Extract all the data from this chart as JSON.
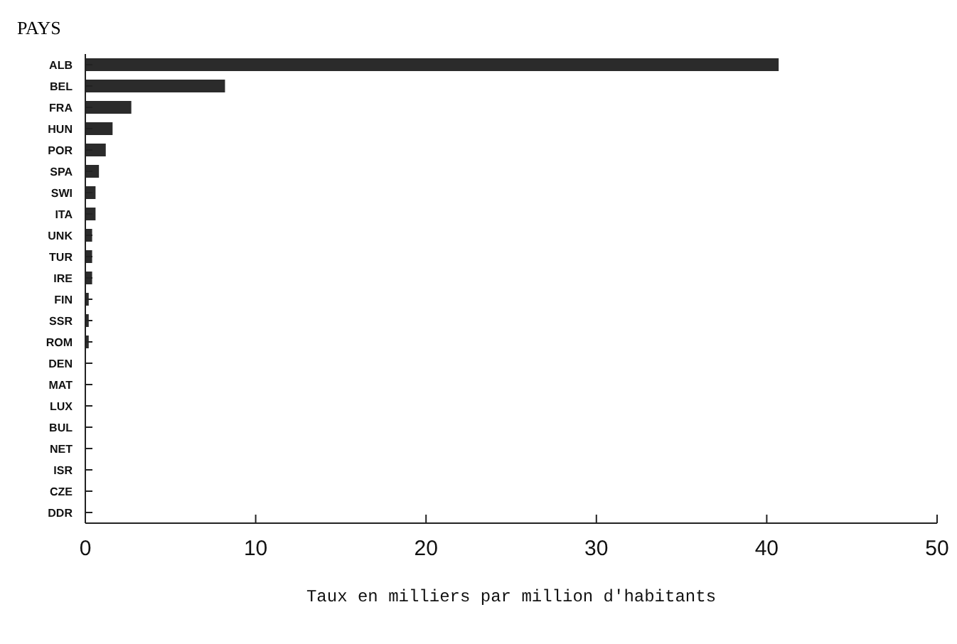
{
  "chart_data": {
    "type": "bar",
    "orientation": "horizontal",
    "ylabel": "PAYS",
    "xlabel": "Taux en milliers par million d'habitants",
    "categories": [
      "ALB",
      "BEL",
      "FRA",
      "HUN",
      "POR",
      "SPA",
      "SWI",
      "ITA",
      "UNK",
      "TUR",
      "IRE",
      "FIN",
      "SSR",
      "ROM",
      "DEN",
      "MAT",
      "LUX",
      "BUL",
      "NET",
      "ISR",
      "CZE",
      "DDR"
    ],
    "values": [
      40.7,
      8.2,
      2.7,
      1.6,
      1.2,
      0.8,
      0.6,
      0.6,
      0.4,
      0.4,
      0.4,
      0.2,
      0.2,
      0.2,
      0,
      0,
      0,
      0,
      0,
      0,
      0,
      0
    ],
    "color": "#2b2b2b",
    "xlim": [
      0,
      50
    ],
    "xticks": [
      0,
      10,
      20,
      30,
      40,
      50
    ],
    "grid": false
  }
}
